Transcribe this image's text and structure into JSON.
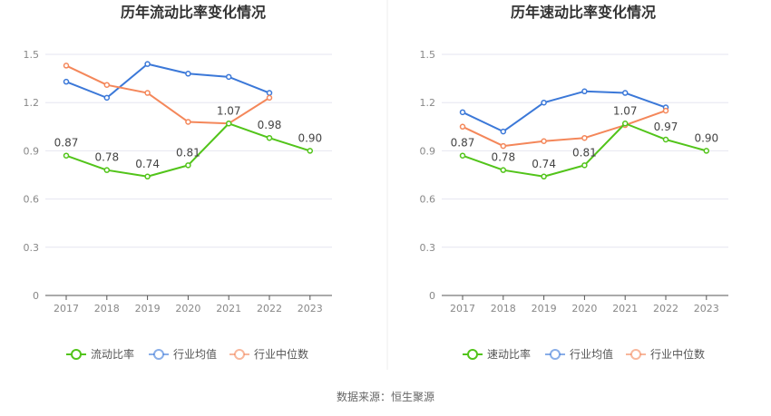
{
  "source": "数据来源：恒生聚源",
  "chart_data": [
    {
      "type": "line",
      "title": "历年流动比率变化情况",
      "categories": [
        "2017",
        "2018",
        "2019",
        "2020",
        "2021",
        "2022",
        "2023"
      ],
      "yticks": [
        "0",
        "0.3",
        "0.6",
        "0.9",
        "1.2",
        "1.5"
      ],
      "ylim": [
        0,
        1.5
      ],
      "grid": true,
      "legend_position": "bottom",
      "series": [
        {
          "name": "流动比率",
          "color": "#52c41a",
          "labeled": true,
          "values": [
            0.87,
            0.78,
            0.74,
            0.81,
            1.07,
            0.98,
            0.9
          ],
          "labels": [
            "0.87",
            "0.78",
            "0.74",
            "0.81",
            "1.07",
            "0.98",
            "0.90"
          ]
        },
        {
          "name": "行业均值",
          "color": "#3b78d8",
          "labeled": false,
          "values": [
            1.33,
            1.23,
            1.44,
            1.38,
            1.36,
            1.26,
            null
          ]
        },
        {
          "name": "行业中位数",
          "color": "#f4875a",
          "labeled": false,
          "values": [
            1.43,
            1.31,
            1.26,
            1.08,
            1.07,
            1.23,
            null
          ]
        }
      ]
    },
    {
      "type": "line",
      "title": "历年速动比率变化情况",
      "categories": [
        "2017",
        "2018",
        "2019",
        "2020",
        "2021",
        "2022",
        "2023"
      ],
      "yticks": [
        "0",
        "0.3",
        "0.6",
        "0.9",
        "1.2",
        "1.5"
      ],
      "ylim": [
        0,
        1.5
      ],
      "grid": true,
      "legend_position": "bottom",
      "series": [
        {
          "name": "速动比率",
          "color": "#52c41a",
          "labeled": true,
          "values": [
            0.87,
            0.78,
            0.74,
            0.81,
            1.07,
            0.97,
            0.9
          ],
          "labels": [
            "0.87",
            "0.78",
            "0.74",
            "0.81",
            "1.07",
            "0.97",
            "0.90"
          ]
        },
        {
          "name": "行业均值",
          "color": "#3b78d8",
          "labeled": false,
          "values": [
            1.14,
            1.02,
            1.2,
            1.27,
            1.26,
            1.17,
            null
          ]
        },
        {
          "name": "行业中位数",
          "color": "#f4875a",
          "labeled": false,
          "values": [
            1.05,
            0.93,
            0.96,
            0.98,
            1.06,
            1.15,
            null
          ]
        }
      ]
    }
  ]
}
